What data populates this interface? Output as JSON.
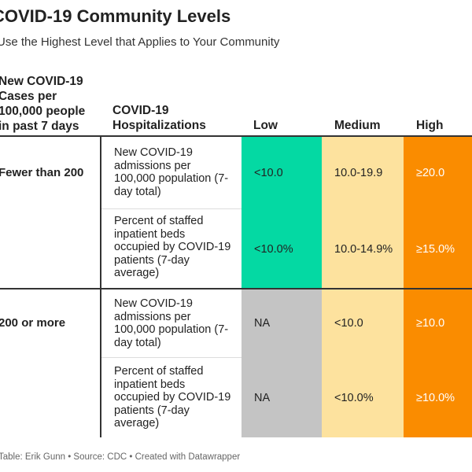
{
  "title": "COVID-19 Community Levels",
  "subtitle": "Use the Highest Level that Applies to Your Community",
  "footer": "Table: Erik Gunn • Source: CDC • Created with Datawrapper",
  "colors": {
    "low": "#04d9a3",
    "medium": "#fde29e",
    "high": "#fa8c00",
    "na": "#c4c4c4",
    "divider": "#333333",
    "row_separator": "#dddddd"
  },
  "chart_data": {
    "type": "table",
    "columns": [
      "New COVID-19\nCases per\n100,000 people\nin past 7 days",
      "COVID-19\nHospitalizations",
      "Low",
      "Medium",
      "High"
    ],
    "rows": [
      {
        "cases": "Fewer than 200",
        "metric": "New COVID-19 admissions per 100,000 population (7-day total)",
        "low": "<10.0",
        "medium": "10.0-19.9",
        "high": "≥20.0"
      },
      {
        "cases": "",
        "metric": "Percent of staffed inpatient beds occupied by COVID-19 patients (7-day average)",
        "low": "<10.0%",
        "medium": "10.0-14.9%",
        "high": "≥15.0%"
      },
      {
        "cases": "200 or more",
        "metric": "New COVID-19 admissions per 100,000 population (7-day total)",
        "low": "NA",
        "medium": "<10.0",
        "high": "≥10.0"
      },
      {
        "cases": "",
        "metric": "Percent of staffed inpatient beds occupied by COVID-19 patients (7-day average)",
        "low": "NA",
        "medium": "<10.0%",
        "high": "≥10.0%"
      }
    ]
  }
}
